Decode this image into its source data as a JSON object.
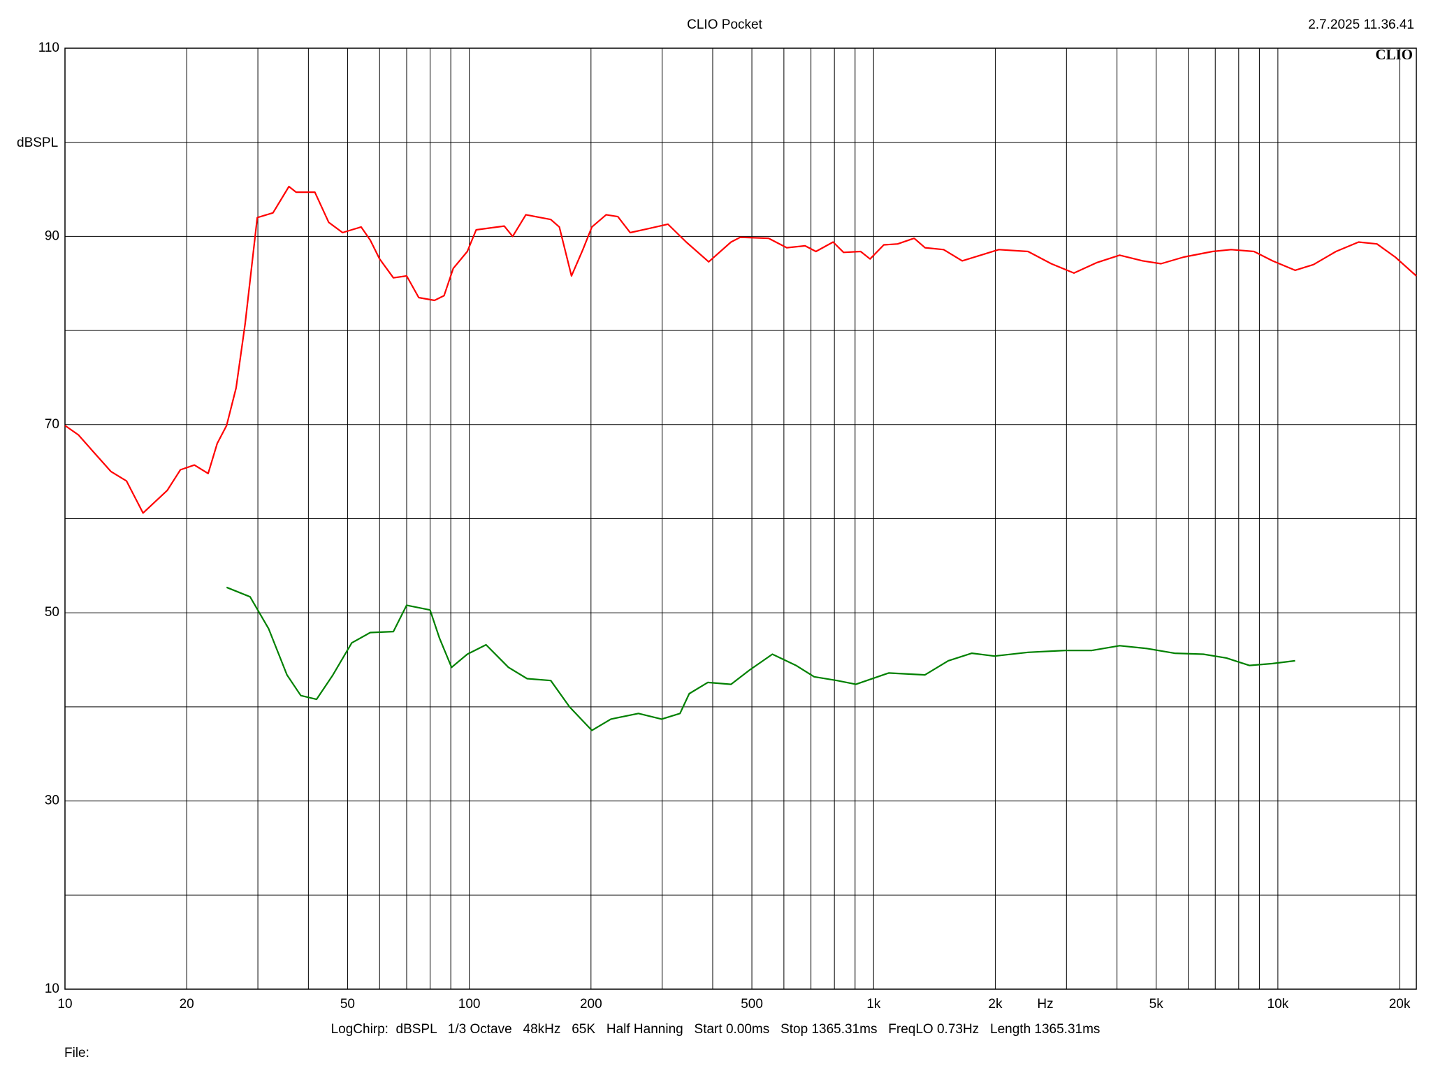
{
  "chart_data": {
    "type": "line",
    "title": "CLIO Pocket",
    "timestamp": "2.7.2025 11.36.41",
    "logo": "CLIO",
    "y_label": "dBSPL",
    "x_label": "Hz",
    "footer": "LogChirp:  dBSPL   1/3 Octave   48kHz   65K   Half Hanning   Start 0.00ms   Stop 1365.31ms   FreqLO 0.73Hz   Length 1365.31ms",
    "file_label": "File:",
    "xscale": "log",
    "grid": true,
    "xlim": [
      10,
      22000
    ],
    "ylim": [
      10,
      110
    ],
    "yticks": [
      10,
      30,
      50,
      70,
      90,
      110
    ],
    "yminor": [
      20,
      40,
      60,
      80,
      100
    ],
    "xticks": [
      10,
      20,
      50,
      100,
      200,
      500,
      {
        "value": 1000,
        "label": "1k"
      },
      {
        "value": 2000,
        "label": "2k"
      },
      {
        "value": 5000,
        "label": "5k"
      },
      {
        "value": 10000,
        "label": "10k"
      },
      {
        "value": 20000,
        "label": "20k"
      }
    ],
    "xminor": [
      30,
      40,
      60,
      70,
      80,
      90,
      300,
      400,
      600,
      700,
      800,
      900,
      3000,
      4000,
      6000,
      7000,
      8000,
      9000
    ],
    "series": [
      {
        "color": "#ff0000",
        "x": [
          10,
          10.8,
          11.7,
          13,
          14.2,
          15.6,
          17.9,
          19.3,
          20.9,
          22.6,
          23.8,
          25.1,
          26.5,
          27.9,
          29.9,
          32.7,
          35.8,
          37.3,
          41.5,
          44.9,
          48.6,
          54,
          56.9,
          60,
          64.9,
          70,
          75,
          82,
          86.6,
          91.3,
          98.9,
          104,
          122,
          128,
          138,
          159,
          167,
          179,
          191,
          201,
          218,
          233,
          250,
          276,
          310,
          344,
          391,
          444,
          468,
          550,
          610,
          677,
          720,
          794,
          843,
          929,
          980,
          1060,
          1147,
          1260,
          1340,
          1490,
          1657,
          1840,
          2040,
          2410,
          2750,
          3130,
          3560,
          4060,
          4630,
          5140,
          5850,
          6890,
          7660,
          8730,
          9700,
          11030,
          12240,
          13920,
          15840,
          17580,
          19510,
          22000
        ],
        "values": [
          69.9,
          68.9,
          67.2,
          65.0,
          64.0,
          60.6,
          63.0,
          65.2,
          65.7,
          64.8,
          68.0,
          69.9,
          73.9,
          80.7,
          92.0,
          92.5,
          95.3,
          94.7,
          94.7,
          91.5,
          90.4,
          91.0,
          89.6,
          87.6,
          85.6,
          85.8,
          83.5,
          83.2,
          83.7,
          86.6,
          88.4,
          90.7,
          91.1,
          90.0,
          92.3,
          91.8,
          91.0,
          85.8,
          88.6,
          91.0,
          92.3,
          92.1,
          90.4,
          90.8,
          91.3,
          89.4,
          87.3,
          89.4,
          89.9,
          89.8,
          88.8,
          89.0,
          88.4,
          89.4,
          88.3,
          88.4,
          87.6,
          89.1,
          89.2,
          89.8,
          88.8,
          88.6,
          87.4,
          88.0,
          88.6,
          88.4,
          87.1,
          86.1,
          87.2,
          88.0,
          87.4,
          87.1,
          87.8,
          88.4,
          88.6,
          88.4,
          87.4,
          86.4,
          87.0,
          88.4,
          89.4,
          89.2,
          87.8,
          85.8
        ]
      },
      {
        "color": "#008000",
        "x": [
          25.1,
          28.7,
          31.9,
          35.4,
          38.3,
          41.9,
          46,
          51.2,
          56.9,
          64.9,
          70,
          80,
          84.4,
          90.4,
          98.9,
          110,
          125,
          139,
          159,
          177,
          201,
          224,
          262,
          299,
          332,
          350,
          389,
          444,
          493,
          562,
          643,
          713,
          812,
          904,
          1090,
          1340,
          1530,
          1750,
          1990,
          2410,
          2980,
          3470,
          4060,
          4750,
          5550,
          6540,
          7460,
          8500,
          9700,
          11030
        ],
        "values": [
          52.7,
          51.7,
          48.3,
          43.4,
          41.2,
          40.8,
          43.4,
          46.8,
          47.9,
          48.0,
          50.8,
          50.3,
          47.3,
          44.2,
          45.6,
          46.6,
          44.2,
          43.0,
          42.8,
          40.0,
          37.5,
          38.7,
          39.3,
          38.7,
          39.3,
          41.4,
          42.6,
          42.4,
          43.9,
          45.6,
          44.4,
          43.2,
          42.8,
          42.4,
          43.6,
          43.4,
          44.9,
          45.7,
          45.4,
          45.8,
          46.0,
          46.0,
          46.5,
          46.2,
          45.7,
          45.6,
          45.2,
          44.4,
          44.6,
          44.9
        ]
      }
    ]
  }
}
